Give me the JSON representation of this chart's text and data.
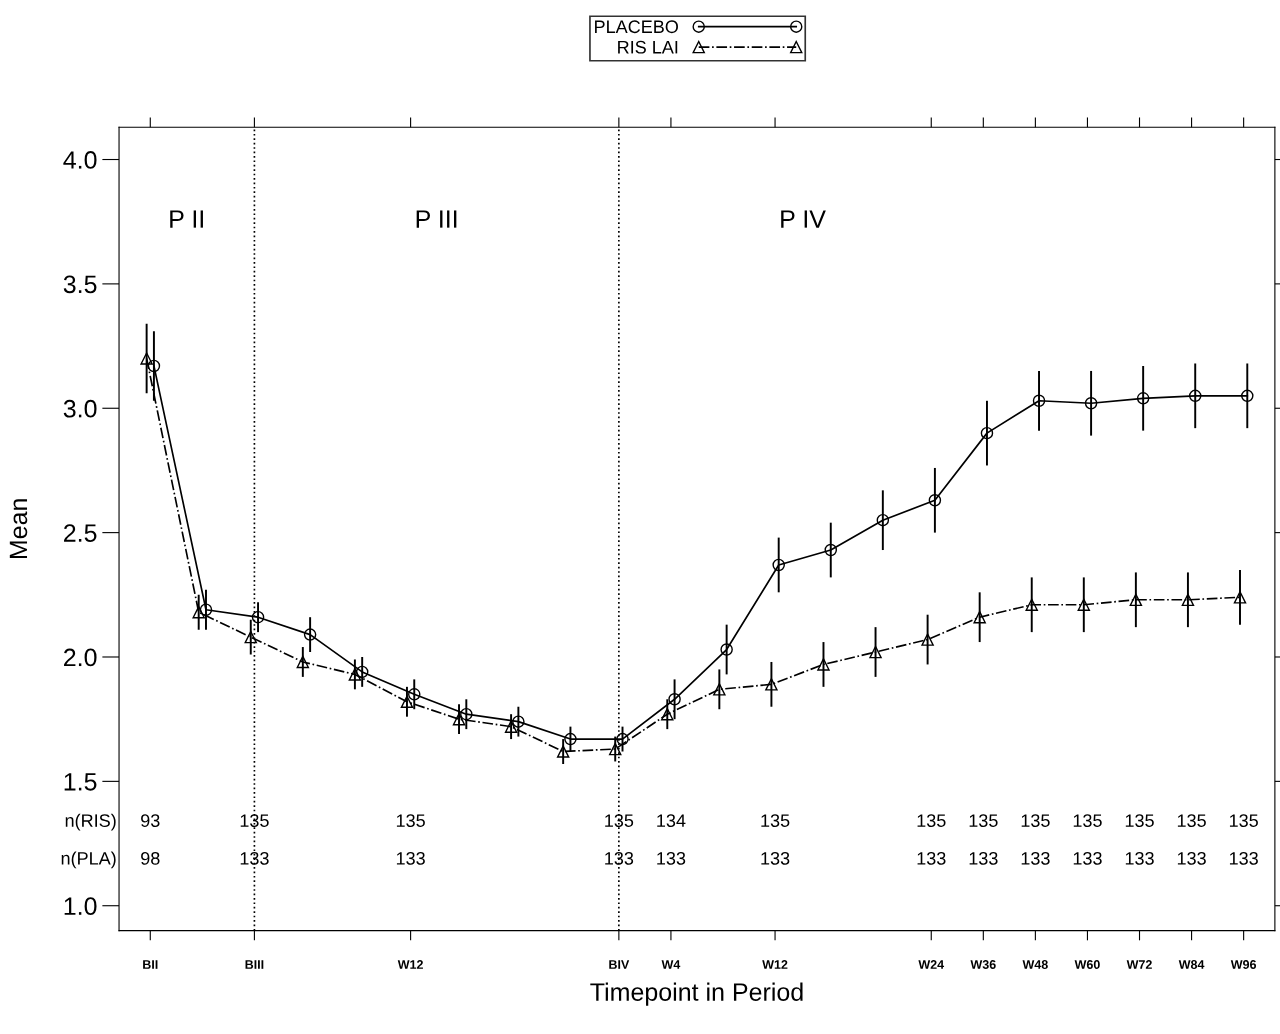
{
  "chart_data": {
    "type": "line",
    "xlabel": "Timepoint in Period",
    "ylabel": "Mean",
    "categories": [
      "BII",
      null,
      "BIII",
      null,
      null,
      "W12",
      null,
      null,
      null,
      "BIV",
      "W4",
      null,
      "W12",
      null,
      null,
      "W24",
      "W36",
      "W48",
      "W60",
      "W72",
      "W84",
      "W96"
    ],
    "ylim": [
      0.9,
      4.13
    ],
    "yticks": [
      {
        "value": 1.0,
        "label": "1.0"
      },
      {
        "value": 1.5,
        "label": "1.5"
      },
      {
        "value": 2.0,
        "label": "2.0"
      },
      {
        "value": 2.5,
        "label": "2.5"
      },
      {
        "value": 3.0,
        "label": "3.0"
      },
      {
        "value": 3.5,
        "label": "3.5"
      },
      {
        "value": 4.0,
        "label": "4.0"
      }
    ],
    "grid": false,
    "legend": "top",
    "series": [
      {
        "name": "PLACEBO",
        "color": "#000000",
        "marker": "circle",
        "line_style": "solid",
        "values": [
          3.17,
          2.19,
          2.16,
          2.09,
          1.94,
          1.85,
          1.77,
          1.74,
          1.67,
          1.67,
          1.83,
          2.03,
          2.37,
          2.43,
          2.55,
          2.63,
          2.9,
          3.03,
          3.02,
          3.04,
          3.05,
          3.05
        ],
        "errors": [
          0.14,
          0.08,
          0.06,
          0.07,
          0.06,
          0.06,
          0.06,
          0.06,
          0.05,
          0.05,
          0.08,
          0.1,
          0.11,
          0.11,
          0.12,
          0.13,
          0.13,
          0.12,
          0.13,
          0.13,
          0.13,
          0.13
        ]
      },
      {
        "name": "RIS LAI",
        "color": "#000000",
        "marker": "triangle",
        "line_style": "dashdot",
        "values": [
          3.2,
          2.18,
          2.08,
          1.98,
          1.93,
          1.82,
          1.75,
          1.72,
          1.62,
          1.63,
          1.77,
          1.87,
          1.89,
          1.97,
          2.02,
          2.07,
          2.16,
          2.21,
          2.21,
          2.23,
          2.23,
          2.24
        ],
        "errors": [
          0.14,
          0.07,
          0.07,
          0.06,
          0.06,
          0.06,
          0.06,
          0.05,
          0.05,
          0.05,
          0.06,
          0.08,
          0.09,
          0.09,
          0.1,
          0.1,
          0.1,
          0.11,
          0.11,
          0.11,
          0.11,
          0.11
        ]
      }
    ],
    "ref_lines": [
      {
        "axis": "x",
        "value": "BIII",
        "line_style": "dotted"
      },
      {
        "axis": "x",
        "value": "BIV",
        "line_style": "dotted"
      }
    ],
    "annotations": [
      "P II",
      "P III",
      "P IV",
      "n(RIS)",
      "n(PLA)",
      "93",
      "135",
      "135",
      "135",
      "134",
      "135",
      "135",
      "135",
      "135",
      "135",
      "135",
      "135",
      "135",
      "98",
      "133",
      "133",
      "133",
      "133",
      "133",
      "133",
      "133",
      "133",
      "133",
      "133",
      "133",
      "133"
    ]
  }
}
